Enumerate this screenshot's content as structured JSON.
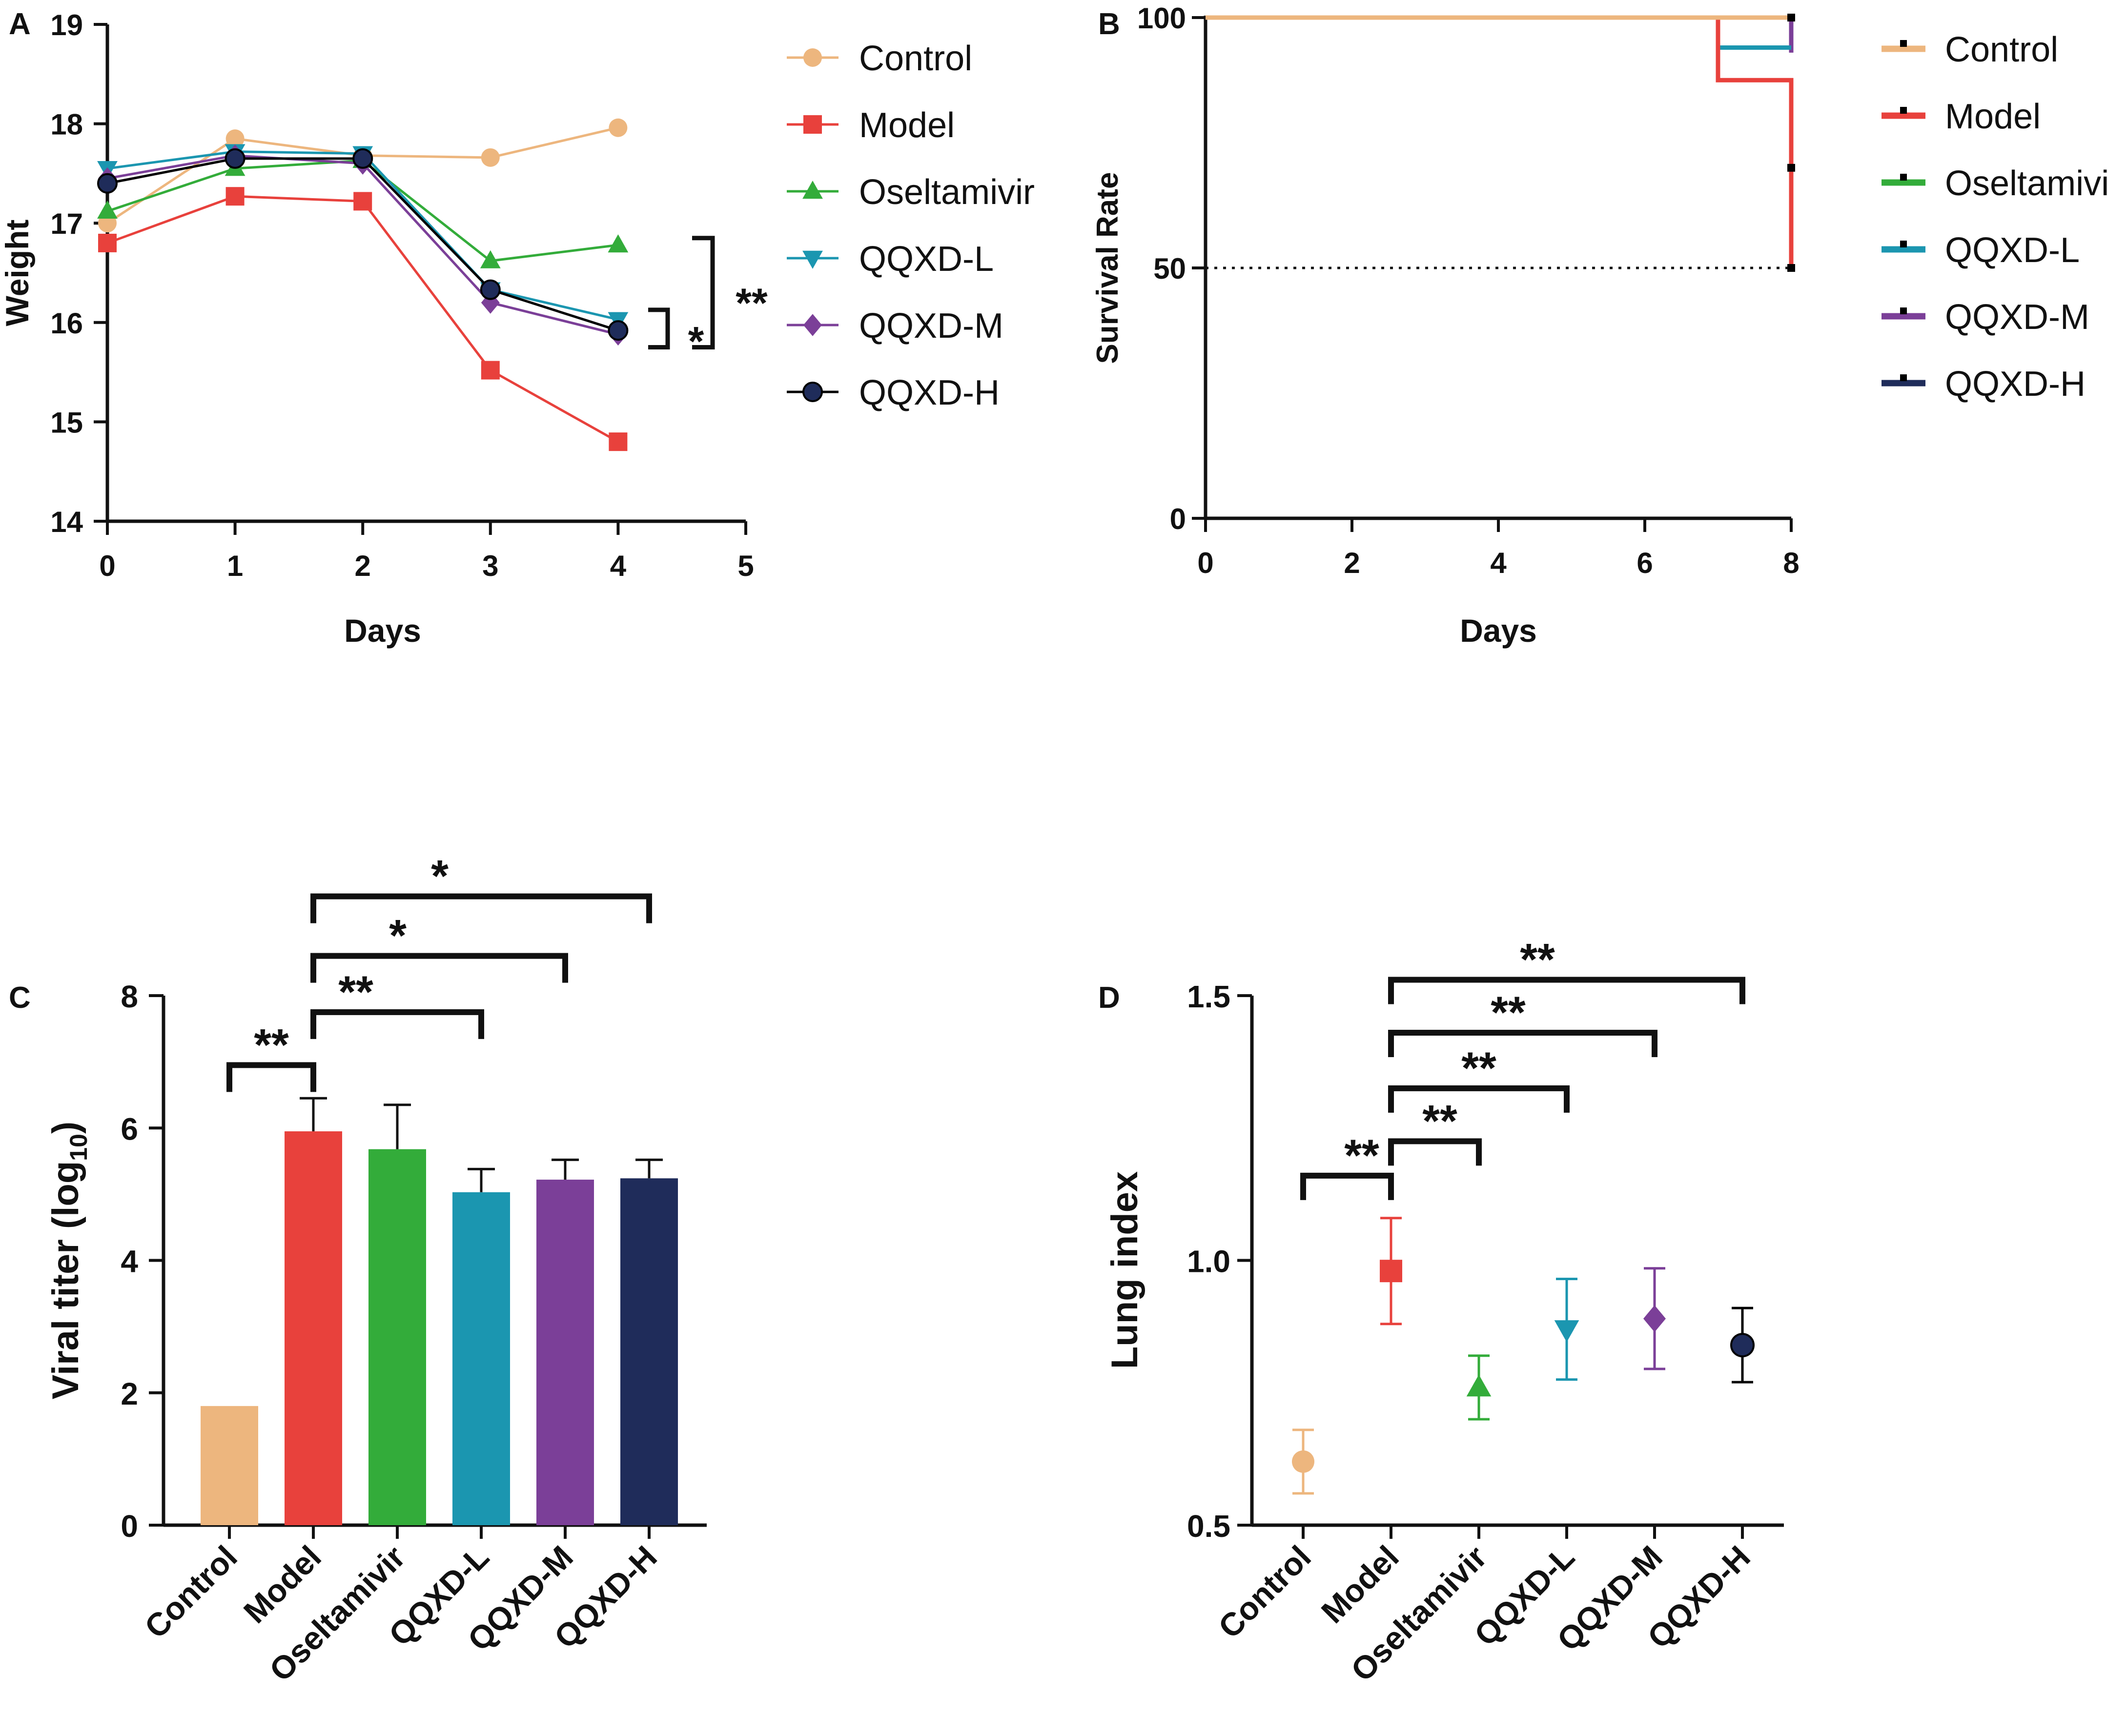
{
  "colors": {
    "Control": "#EDB67E",
    "Model": "#E8413C",
    "Oseltamivir": "#33AC3A",
    "QQXD-L": "#1B96B0",
    "QQXD-M": "#7B3F98",
    "QQXD-H": "#1F2C5A",
    "axis": "#111111"
  },
  "chart_data": [
    {
      "panel": "A",
      "type": "line",
      "xlabel": "Days",
      "ylabel": "Weight",
      "xlim": [
        0,
        5
      ],
      "ylim": [
        14,
        19
      ],
      "xticks": [
        "0",
        "1",
        "2",
        "3",
        "4",
        "5"
      ],
      "yticks": [
        "14",
        "15",
        "16",
        "17",
        "18",
        "19"
      ],
      "x": [
        0,
        1,
        2,
        3,
        4
      ],
      "legend": "right",
      "series": [
        {
          "name": "Control",
          "marker": "circle",
          "values": [
            17.0,
            17.85,
            17.68,
            17.66,
            17.96
          ]
        },
        {
          "name": "Model",
          "marker": "square",
          "values": [
            16.8,
            17.27,
            17.22,
            15.52,
            14.8
          ]
        },
        {
          "name": "Oseltamivir",
          "marker": "triangle-up",
          "values": [
            17.12,
            17.55,
            17.63,
            16.62,
            16.78
          ]
        },
        {
          "name": "QQXD-L",
          "marker": "triangle-down",
          "values": [
            17.55,
            17.72,
            17.7,
            16.33,
            16.03
          ]
        },
        {
          "name": "QQXD-M",
          "marker": "diamond",
          "values": [
            17.45,
            17.68,
            17.6,
            16.2,
            15.88
          ]
        },
        {
          "name": "QQXD-H",
          "marker": "circle-dark",
          "values": [
            17.4,
            17.65,
            17.65,
            16.33,
            15.92
          ]
        }
      ],
      "annotations": [
        {
          "text": "**",
          "from_y": 15.8,
          "to_y": 16.85
        },
        {
          "text": "*",
          "from_y": 15.8,
          "to_y": 15.98
        }
      ]
    },
    {
      "panel": "B",
      "type": "line",
      "xlabel": "Days",
      "ylabel": "Survival Rate",
      "xlim": [
        0,
        8
      ],
      "ylim": [
        0,
        100
      ],
      "xticks": [
        "0",
        "2",
        "4",
        "6",
        "8"
      ],
      "yticks": [
        "0",
        "50",
        "100"
      ],
      "reference_line": 50,
      "legend": "right",
      "series": [
        {
          "name": "Control",
          "points": [
            [
              0,
              100
            ],
            [
              8,
              100
            ]
          ]
        },
        {
          "name": "Model",
          "points": [
            [
              0,
              100
            ],
            [
              7,
              100
            ],
            [
              7,
              87.5
            ],
            [
              8,
              87.5
            ],
            [
              8,
              50
            ]
          ]
        },
        {
          "name": "Oseltamivir",
          "points": [
            [
              0,
              100
            ],
            [
              8,
              100
            ]
          ]
        },
        {
          "name": "QQXD-L",
          "points": [
            [
              0,
              100
            ],
            [
              7,
              100
            ],
            [
              7,
              94
            ],
            [
              8,
              94
            ]
          ]
        },
        {
          "name": "QQXD-M",
          "points": [
            [
              0,
              100
            ],
            [
              8,
              100
            ],
            [
              8,
              93
            ]
          ]
        },
        {
          "name": "QQXD-H",
          "points": [
            [
              0,
              100
            ],
            [
              8,
              100
            ]
          ]
        }
      ]
    },
    {
      "panel": "C",
      "type": "bar",
      "xlabel": "",
      "ylabel_main": "Viral titer (log",
      "ylabel_sub": "10",
      "ylabel_end": ")",
      "ylim": [
        0,
        8
      ],
      "yticks": [
        "0",
        "2",
        "4",
        "6",
        "8"
      ],
      "categories": [
        "Control",
        "Model",
        "Oseltamivir",
        "QQXD-L",
        "QQXD-M",
        "QQXD-H"
      ],
      "values": [
        1.8,
        5.95,
        5.68,
        5.03,
        5.22,
        5.24
      ],
      "errors": [
        0,
        0.5,
        0.67,
        0.35,
        0.3,
        0.28
      ],
      "significance": [
        {
          "from": 0,
          "to": 1,
          "text": "**",
          "y": 6.95
        },
        {
          "from": 1,
          "to": 3,
          "text": "**",
          "y": 7.75
        },
        {
          "from": 1,
          "to": 4,
          "text": "*",
          "y": 8.6
        },
        {
          "from": 1,
          "to": 5,
          "text": "*",
          "y": 9.5
        }
      ]
    },
    {
      "panel": "D",
      "type": "scatter",
      "xlabel": "",
      "ylabel": "Lung index",
      "ylim": [
        0.5,
        1.5
      ],
      "yticks": [
        "0.5",
        "1.0",
        "1.5"
      ],
      "categories": [
        "Control",
        "Model",
        "Oseltamivir",
        "QQXD-L",
        "QQXD-M",
        "QQXD-H"
      ],
      "markers": [
        "circle",
        "square",
        "triangle-up",
        "triangle-down",
        "diamond",
        "circle-dark"
      ],
      "values": [
        0.62,
        0.98,
        0.76,
        0.87,
        0.89,
        0.84
      ],
      "errors": [
        0.06,
        0.1,
        0.06,
        0.095,
        0.095,
        0.07
      ],
      "significance": [
        {
          "from": 0,
          "to": 1,
          "text": "**",
          "y": 1.16
        },
        {
          "from": 1,
          "to": 2,
          "text": "**",
          "y": 1.225
        },
        {
          "from": 1,
          "to": 3,
          "text": "**",
          "y": 1.325
        },
        {
          "from": 1,
          "to": 4,
          "text": "**",
          "y": 1.43
        },
        {
          "from": 1,
          "to": 5,
          "text": "**",
          "y": 1.53
        }
      ]
    }
  ],
  "panel_labels": [
    "A",
    "B",
    "C",
    "D"
  ]
}
